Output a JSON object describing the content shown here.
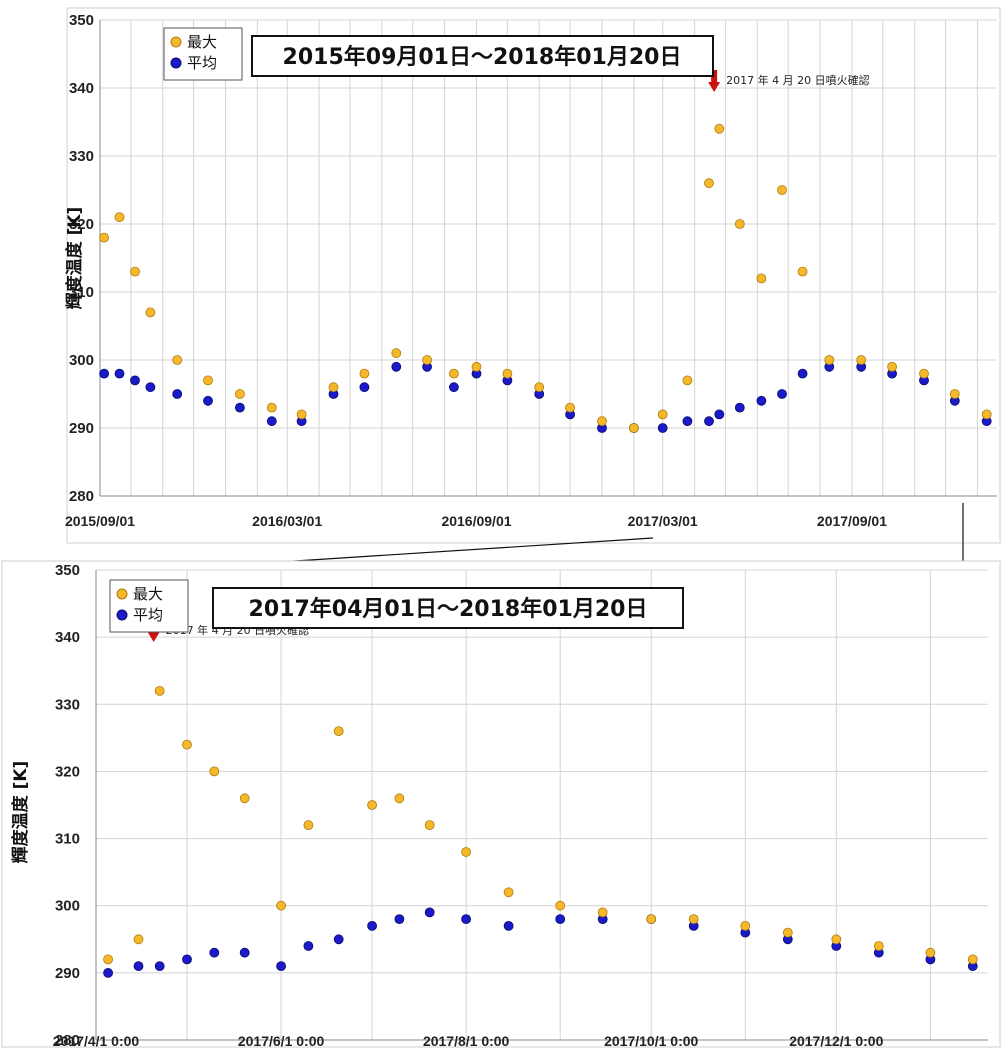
{
  "chart_data": [
    {
      "type": "scatter",
      "title": "2015年09月01日～2018年01月20日",
      "ylabel": "輝度温度 [K]",
      "xlabel": "",
      "ylim": [
        280,
        350
      ],
      "yticks": [
        "280",
        "290",
        "300",
        "310",
        "320",
        "330",
        "340",
        "350"
      ],
      "xlim": [
        "2015-09-01",
        "2018-01-20"
      ],
      "xticks": [
        {
          "date": "2015-09-01",
          "label": "2015/09/01"
        },
        {
          "date": "2016-03-01",
          "label": "2016/03/01"
        },
        {
          "date": "2016-09-01",
          "label": "2016/09/01"
        },
        {
          "date": "2017-03-01",
          "label": "2017/03/01"
        },
        {
          "date": "2017-09-01",
          "label": "2017/09/01"
        }
      ],
      "grid": true,
      "legend_position": "top-left",
      "annotation": {
        "date": "2017-04-20",
        "text": "2017 年 4 月 20 日噴火確認"
      },
      "series": [
        {
          "name": "最大",
          "color": "#f5b82a",
          "edge": "#b07c10",
          "x": [
            "2015-09-05",
            "2015-09-20",
            "2015-10-05",
            "2015-10-20",
            "2015-11-15",
            "2015-12-15",
            "2016-01-15",
            "2016-02-15",
            "2016-03-15",
            "2016-04-15",
            "2016-05-15",
            "2016-06-15",
            "2016-07-15",
            "2016-08-10",
            "2016-09-01",
            "2016-10-01",
            "2016-11-01",
            "2016-12-01",
            "2017-01-01",
            "2017-02-01",
            "2017-03-01",
            "2017-03-25",
            "2017-04-15",
            "2017-04-25",
            "2017-05-15",
            "2017-06-05",
            "2017-06-25",
            "2017-07-15",
            "2017-08-10",
            "2017-09-10",
            "2017-10-10",
            "2017-11-10",
            "2017-12-10",
            "2018-01-10"
          ],
          "y": [
            318,
            321,
            313,
            307,
            300,
            297,
            295,
            293,
            292,
            296,
            298,
            301,
            300,
            298,
            299,
            298,
            296,
            293,
            291,
            290,
            292,
            297,
            326,
            334,
            320,
            312,
            325,
            313,
            300,
            300,
            299,
            298,
            295,
            292
          ]
        },
        {
          "name": "平均",
          "color": "#1a1ac8",
          "edge": "#0a0a70",
          "x": [
            "2015-09-05",
            "2015-09-20",
            "2015-10-05",
            "2015-10-20",
            "2015-11-15",
            "2015-12-15",
            "2016-01-15",
            "2016-02-15",
            "2016-03-15",
            "2016-04-15",
            "2016-05-15",
            "2016-06-15",
            "2016-07-15",
            "2016-08-10",
            "2016-09-01",
            "2016-10-01",
            "2016-11-01",
            "2016-12-01",
            "2017-01-01",
            "2017-02-01",
            "2017-03-01",
            "2017-03-25",
            "2017-04-15",
            "2017-04-25",
            "2017-05-15",
            "2017-06-05",
            "2017-06-25",
            "2017-07-15",
            "2017-08-10",
            "2017-09-10",
            "2017-10-10",
            "2017-11-10",
            "2017-12-10",
            "2018-01-10"
          ],
          "y": [
            298,
            298,
            297,
            296,
            295,
            294,
            293,
            291,
            291,
            295,
            296,
            299,
            299,
            296,
            298,
            297,
            295,
            292,
            290,
            290,
            290,
            291,
            291,
            292,
            293,
            294,
            295,
            298,
            299,
            299,
            298,
            297,
            294,
            291
          ]
        }
      ]
    },
    {
      "type": "scatter",
      "title": "2017年04月01日～2018年01月20日",
      "ylabel": "輝度温度 [K]",
      "xlabel": "",
      "ylim": [
        280,
        350
      ],
      "yticks": [
        "280",
        "290",
        "300",
        "310",
        "320",
        "330",
        "340",
        "350"
      ],
      "xlim": [
        "2017-04-01",
        "2018-01-20"
      ],
      "xticks": [
        {
          "date": "2017-04-01",
          "label": "2017/4/1 0:00"
        },
        {
          "date": "2017-06-01",
          "label": "2017/6/1 0:00"
        },
        {
          "date": "2017-08-01",
          "label": "2017/8/1 0:00"
        },
        {
          "date": "2017-10-01",
          "label": "2017/10/1 0:00"
        },
        {
          "date": "2017-12-01",
          "label": "2017/12/1 0:00"
        }
      ],
      "grid": true,
      "legend_position": "top-left",
      "annotation": {
        "date": "2017-04-20",
        "text": "2017 年 4 月 20 日噴火確認"
      },
      "series": [
        {
          "name": "最大",
          "color": "#f5b82a",
          "edge": "#b07c10",
          "x": [
            "2017-04-05",
            "2017-04-15",
            "2017-04-22",
            "2017-05-01",
            "2017-05-10",
            "2017-05-20",
            "2017-06-01",
            "2017-06-10",
            "2017-06-20",
            "2017-07-01",
            "2017-07-10",
            "2017-07-20",
            "2017-08-01",
            "2017-08-15",
            "2017-09-01",
            "2017-09-15",
            "2017-10-01",
            "2017-10-15",
            "2017-11-01",
            "2017-11-15",
            "2017-12-01",
            "2017-12-15",
            "2018-01-01",
            "2018-01-15"
          ],
          "y": [
            292,
            295,
            332,
            324,
            320,
            316,
            300,
            312,
            326,
            315,
            316,
            312,
            308,
            302,
            300,
            299,
            298,
            298,
            297,
            296,
            295,
            294,
            293,
            292
          ]
        },
        {
          "name": "平均",
          "color": "#1a1ac8",
          "edge": "#0a0a70",
          "x": [
            "2017-04-05",
            "2017-04-15",
            "2017-04-22",
            "2017-05-01",
            "2017-05-10",
            "2017-05-20",
            "2017-06-01",
            "2017-06-10",
            "2017-06-20",
            "2017-07-01",
            "2017-07-10",
            "2017-07-20",
            "2017-08-01",
            "2017-08-15",
            "2017-09-01",
            "2017-09-15",
            "2017-10-01",
            "2017-10-15",
            "2017-11-01",
            "2017-11-15",
            "2017-12-01",
            "2017-12-15",
            "2018-01-01",
            "2018-01-15"
          ],
          "y": [
            290,
            291,
            291,
            292,
            293,
            293,
            291,
            294,
            295,
            297,
            298,
            299,
            298,
            297,
            298,
            298,
            298,
            297,
            296,
            295,
            294,
            293,
            292,
            291
          ]
        }
      ]
    }
  ],
  "colors": {
    "max_fill": "#f5b82a",
    "avg_fill": "#1a1ac8",
    "arrow": "#cc1111",
    "grid": "#cfcfcf"
  }
}
